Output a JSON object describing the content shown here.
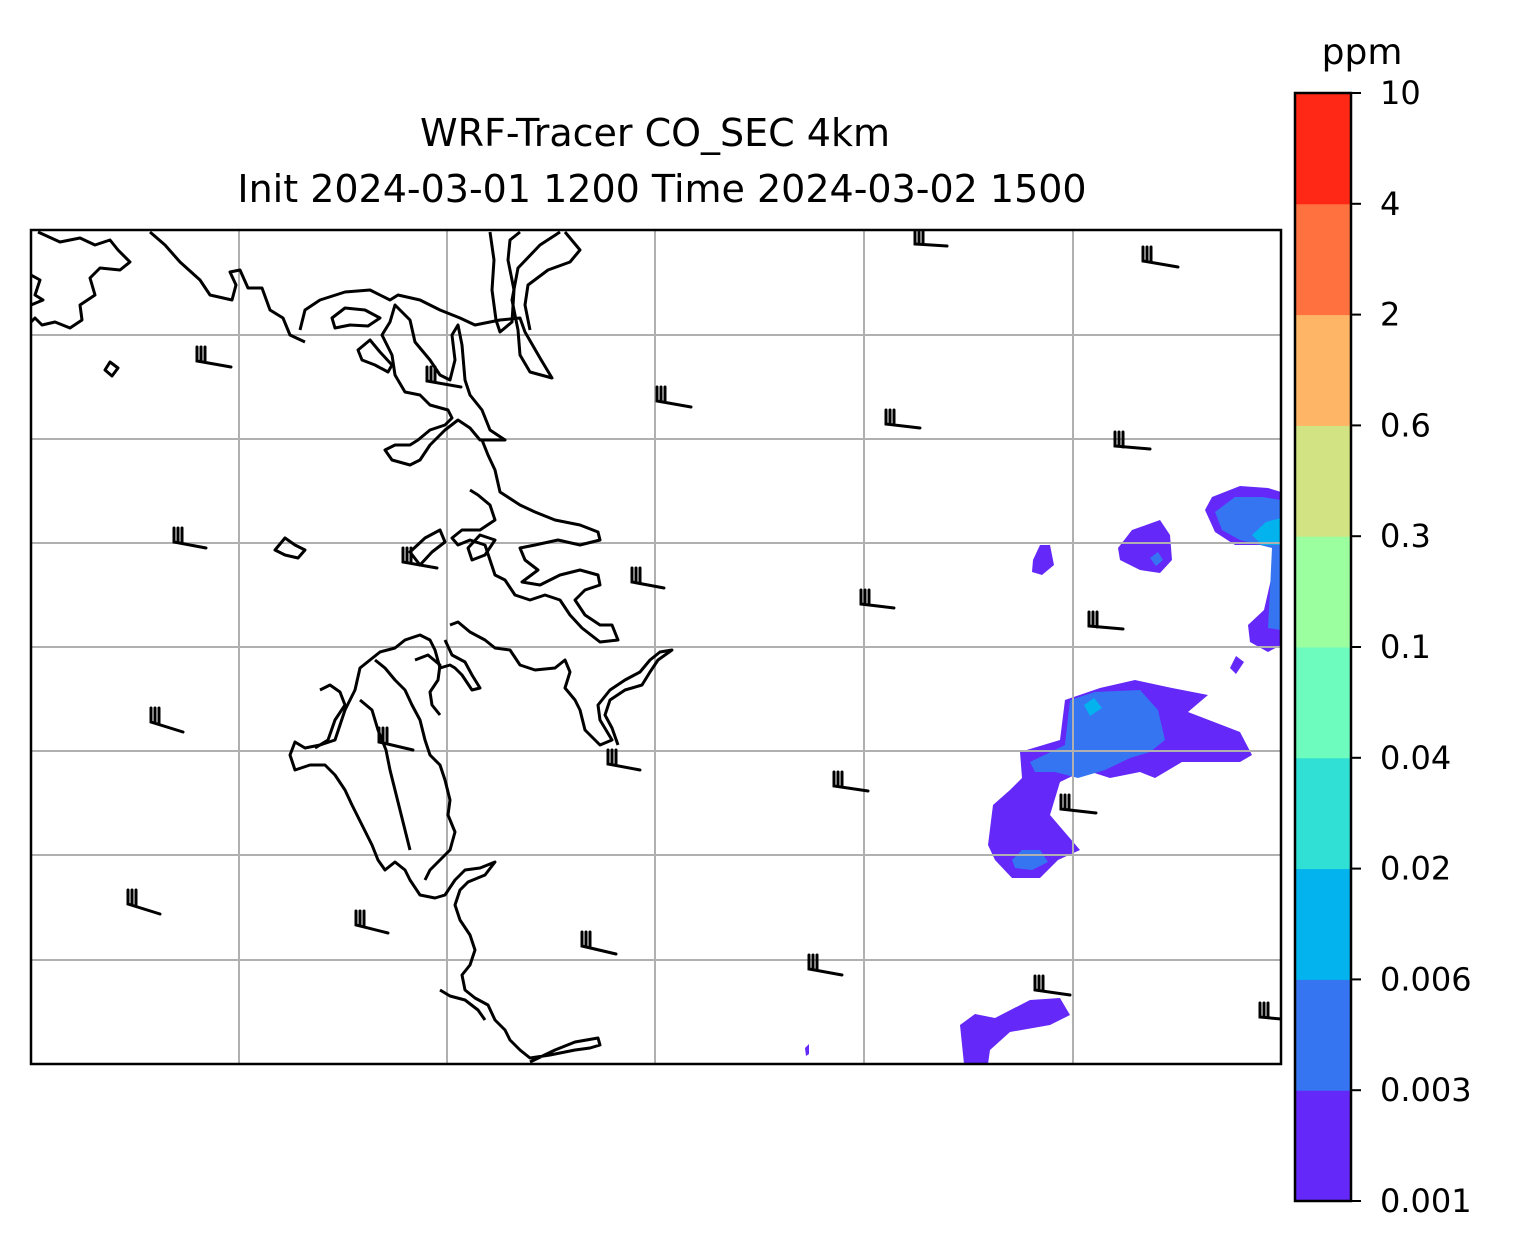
{
  "title": {
    "line1": "WRF-Tracer CO_SEC 4km",
    "line2": "Init 2024-03-01 1200 Time 2024-03-02 1500"
  },
  "colorbar": {
    "unit": "ppm",
    "levels": [
      "0.001",
      "0.003",
      "0.006",
      "0.02",
      "0.04",
      "0.1",
      "0.3",
      "0.6",
      "2",
      "4",
      "10"
    ],
    "colors": [
      "#6428f8",
      "#3575f2",
      "#02b3ed",
      "#31e0d5",
      "#6dfcbd",
      "#9cff9f",
      "#d1e383",
      "#feb566",
      "#ff7240",
      "#ff2816"
    ]
  },
  "map": {
    "grid": "on",
    "coastline_color": "#000000",
    "gridline_color": "#b0b0b0",
    "wind_barb_color": "#000000"
  }
}
